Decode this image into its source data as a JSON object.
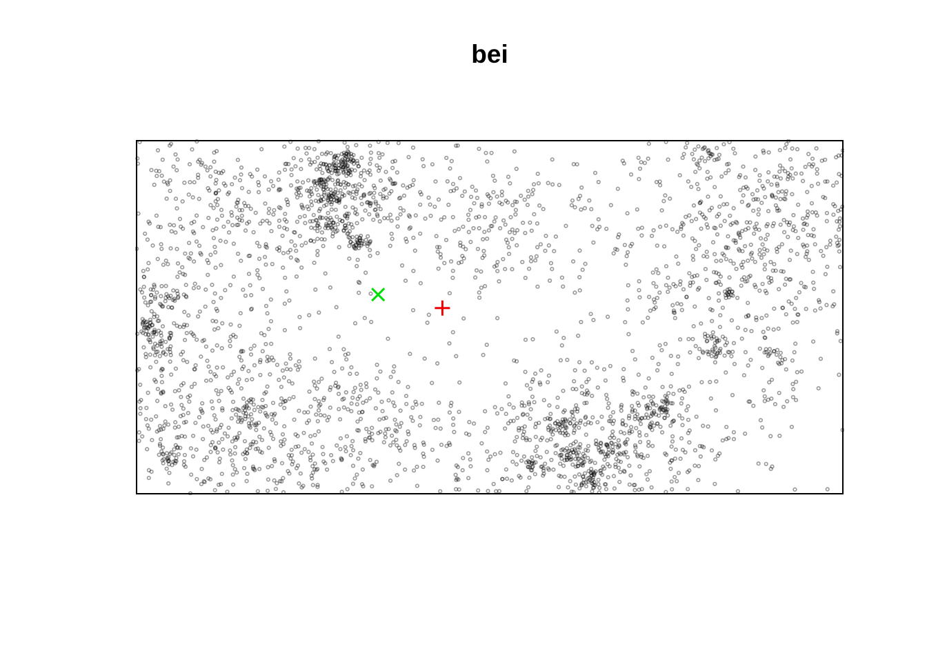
{
  "chart_data": {
    "type": "scatter",
    "title": "bei",
    "xlabel": "",
    "ylabel": "",
    "xlim": [
      0,
      1000
    ],
    "ylim": [
      0,
      500
    ],
    "grid": false,
    "axes_visible": false,
    "window": "rectangle",
    "point_color": "#000000",
    "point_opacity": 0.4,
    "point_count_estimate": 3604,
    "clusters": [
      {
        "cx": 30,
        "cy": 200,
        "sx": 150,
        "sy": 130,
        "n": 650
      },
      {
        "cx": 160,
        "cy": 420,
        "sx": 130,
        "sy": 70,
        "n": 380
      },
      {
        "cx": 290,
        "cy": 440,
        "sx": 40,
        "sy": 40,
        "n": 220
      },
      {
        "cx": 130,
        "cy": 70,
        "sx": 120,
        "sy": 60,
        "n": 280
      },
      {
        "cx": 300,
        "cy": 90,
        "sx": 90,
        "sy": 55,
        "n": 180
      },
      {
        "cx": 490,
        "cy": 380,
        "sx": 80,
        "sy": 60,
        "n": 190
      },
      {
        "cx": 640,
        "cy": 70,
        "sx": 110,
        "sy": 55,
        "n": 430
      },
      {
        "cx": 860,
        "cy": 350,
        "sx": 110,
        "sy": 120,
        "n": 560
      },
      {
        "cx": 930,
        "cy": 420,
        "sx": 70,
        "sy": 60,
        "n": 180
      },
      {
        "cx": 540,
        "cy": 220,
        "sx": 260,
        "sy": 170,
        "n": 200
      }
    ],
    "hotspots": [
      {
        "x": 290,
        "y": 466,
        "r": 12,
        "n": 60
      },
      {
        "x": 280,
        "y": 417,
        "r": 8,
        "n": 25
      },
      {
        "x": 315,
        "y": 357,
        "r": 10,
        "n": 35
      },
      {
        "x": 283,
        "y": 380,
        "r": 12,
        "n": 35
      },
      {
        "x": 260,
        "y": 440,
        "r": 10,
        "n": 20
      },
      {
        "x": 25,
        "y": 223,
        "r": 18,
        "n": 45
      },
      {
        "x": 15,
        "y": 240,
        "r": 8,
        "n": 15
      },
      {
        "x": 48,
        "y": 280,
        "r": 15,
        "n": 30
      },
      {
        "x": 155,
        "y": 117,
        "r": 12,
        "n": 25
      },
      {
        "x": 40,
        "y": 50,
        "r": 10,
        "n": 15
      },
      {
        "x": 615,
        "y": 53,
        "r": 12,
        "n": 40
      },
      {
        "x": 645,
        "y": 20,
        "r": 15,
        "n": 45
      },
      {
        "x": 600,
        "y": 100,
        "r": 15,
        "n": 35
      },
      {
        "x": 720,
        "y": 110,
        "r": 15,
        "n": 30
      },
      {
        "x": 750,
        "y": 125,
        "r": 10,
        "n": 25
      },
      {
        "x": 673,
        "y": 60,
        "r": 15,
        "n": 35
      },
      {
        "x": 565,
        "y": 40,
        "r": 10,
        "n": 20
      },
      {
        "x": 820,
        "y": 210,
        "r": 15,
        "n": 35
      },
      {
        "x": 841,
        "y": 285,
        "r": 8,
        "n": 15
      },
      {
        "x": 903,
        "y": 198,
        "r": 8,
        "n": 12
      },
      {
        "x": 810,
        "y": 482,
        "r": 10,
        "n": 15
      }
    ],
    "markers": [
      {
        "symbol": "x",
        "color": "#00dd00",
        "x": 342,
        "y": 282
      },
      {
        "symbol": "+",
        "color": "#ee0000",
        "x": 433,
        "y": 263
      }
    ]
  }
}
